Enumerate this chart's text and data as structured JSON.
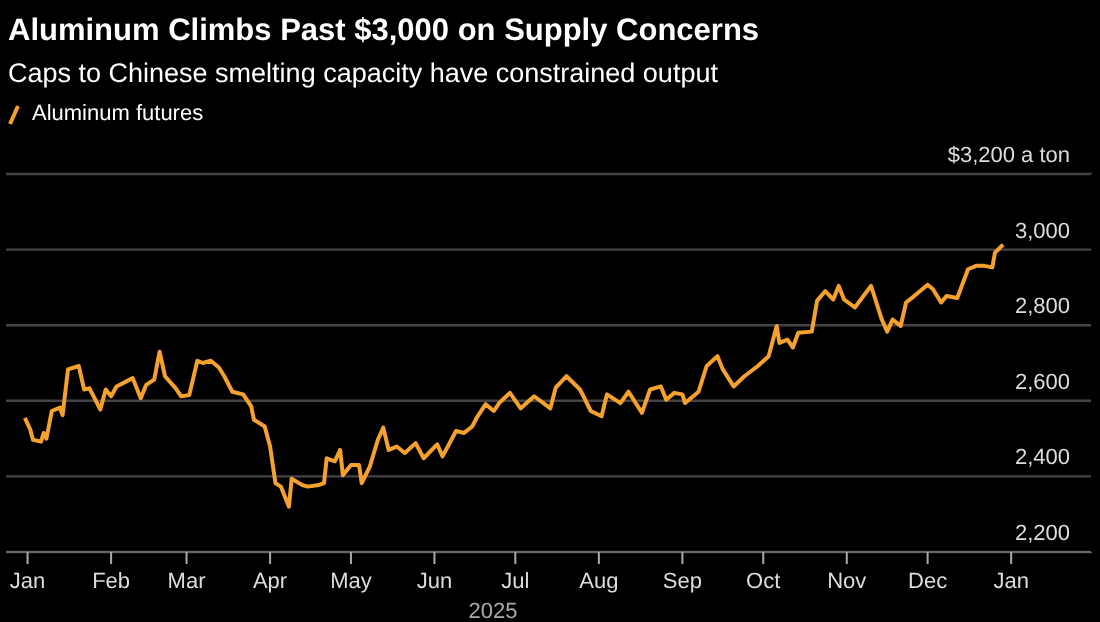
{
  "chart_data": {
    "type": "line",
    "title": "Aluminum Climbs Past $3,000 on Supply Concerns",
    "subtitle": "Caps to Chinese smelting capacity have constrained output",
    "xlabel": "2025",
    "legend": "top left",
    "grid": "y",
    "x": [
      "2024-12-31",
      "2025-01-02",
      "2025-01-03",
      "2025-01-06",
      "2025-01-07",
      "2025-01-08",
      "2025-01-10",
      "2025-01-13",
      "2025-01-14",
      "2025-01-16",
      "2025-01-20",
      "2025-01-22",
      "2025-01-24",
      "2025-01-28",
      "2025-01-30",
      "2025-02-01",
      "2025-02-03",
      "2025-02-09",
      "2025-02-12",
      "2025-02-14",
      "2025-02-17",
      "2025-02-19",
      "2025-02-21",
      "2025-02-25",
      "2025-02-27",
      "2025-03-02",
      "2025-03-05",
      "2025-03-07",
      "2025-03-10",
      "2025-03-13",
      "2025-03-15",
      "2025-03-18",
      "2025-03-22",
      "2025-03-25",
      "2025-03-26",
      "2025-03-30",
      "2025-04-01",
      "2025-04-03",
      "2025-04-05",
      "2025-04-08",
      "2025-04-09",
      "2025-04-13",
      "2025-04-15",
      "2025-04-19",
      "2025-04-21",
      "2025-04-22",
      "2025-04-25",
      "2025-04-27",
      "2025-04-28",
      "2025-05-01",
      "2025-05-04",
      "2025-05-05",
      "2025-05-08",
      "2025-05-11",
      "2025-05-13",
      "2025-05-15",
      "2025-05-18",
      "2025-05-21",
      "2025-05-25",
      "2025-05-28",
      "2025-06-02",
      "2025-06-04",
      "2025-06-09",
      "2025-06-12",
      "2025-06-15",
      "2025-06-17",
      "2025-06-20",
      "2025-06-23",
      "2025-06-25",
      "2025-06-29",
      "2025-07-03",
      "2025-07-08",
      "2025-07-14",
      "2025-07-16",
      "2025-07-20",
      "2025-07-25",
      "2025-07-29",
      "2025-08-02",
      "2025-08-04",
      "2025-08-09",
      "2025-08-12",
      "2025-08-17",
      "2025-08-20",
      "2025-08-24",
      "2025-08-26",
      "2025-08-29",
      "2025-09-01",
      "2025-09-02",
      "2025-09-07",
      "2025-09-10",
      "2025-09-14",
      "2025-09-16",
      "2025-09-20",
      "2025-09-24",
      "2025-09-29",
      "2025-10-03",
      "2025-10-06",
      "2025-10-07",
      "2025-10-10",
      "2025-10-12",
      "2025-10-14",
      "2025-10-19",
      "2025-10-21",
      "2025-10-24",
      "2025-10-27",
      "2025-10-29",
      "2025-10-31",
      "2025-11-04",
      "2025-11-10",
      "2025-11-14",
      "2025-11-16",
      "2025-11-18",
      "2025-11-21",
      "2025-11-23",
      "2025-11-26",
      "2025-12-01",
      "2025-12-03",
      "2025-12-06",
      "2025-12-08",
      "2025-12-12",
      "2025-12-16",
      "2025-12-19",
      "2025-12-22",
      "2025-12-25",
      "2025-12-26",
      "2025-12-29"
    ],
    "series": [
      {
        "name": "Aluminum futures",
        "color": "#f6a12c",
        "values": [
          2555,
          2524,
          2497,
          2492,
          2515,
          2500,
          2573,
          2582,
          2562,
          2683,
          2692,
          2630,
          2633,
          2577,
          2630,
          2612,
          2638,
          2660,
          2607,
          2642,
          2656,
          2730,
          2665,
          2633,
          2612,
          2615,
          2706,
          2700,
          2706,
          2688,
          2665,
          2624,
          2617,
          2585,
          2550,
          2532,
          2479,
          2382,
          2373,
          2320,
          2394,
          2377,
          2373,
          2377,
          2382,
          2448,
          2440,
          2470,
          2403,
          2430,
          2430,
          2382,
          2426,
          2497,
          2529,
          2470,
          2479,
          2462,
          2488,
          2448,
          2485,
          2453,
          2520,
          2515,
          2532,
          2559,
          2591,
          2573,
          2594,
          2621,
          2580,
          2612,
          2580,
          2635,
          2665,
          2630,
          2573,
          2559,
          2617,
          2594,
          2624,
          2568,
          2630,
          2638,
          2603,
          2621,
          2617,
          2594,
          2624,
          2692,
          2718,
          2683,
          2638,
          2665,
          2692,
          2718,
          2798,
          2753,
          2762,
          2741,
          2780,
          2783,
          2865,
          2890,
          2868,
          2904,
          2868,
          2847,
          2904,
          2815,
          2783,
          2815,
          2798,
          2860,
          2877,
          2907,
          2895,
          2860,
          2877,
          2872,
          2948,
          2957,
          2957,
          2953,
          2992,
          3013
        ]
      }
    ],
    "xlim": [
      "2024-12-24",
      "2026-01-31"
    ],
    "xticks": [
      {
        "value": "2025-01-01",
        "label": "Jan"
      },
      {
        "value": "2025-02-01",
        "label": "Feb"
      },
      {
        "value": "2025-03-01",
        "label": "Mar"
      },
      {
        "value": "2025-04-01",
        "label": "Apr"
      },
      {
        "value": "2025-05-01",
        "label": "May"
      },
      {
        "value": "2025-06-01",
        "label": "Jun"
      },
      {
        "value": "2025-07-01",
        "label": "Jul"
      },
      {
        "value": "2025-08-01",
        "label": "Aug"
      },
      {
        "value": "2025-09-01",
        "label": "Sep"
      },
      {
        "value": "2025-10-01",
        "label": "Oct"
      },
      {
        "value": "2025-11-01",
        "label": "Nov"
      },
      {
        "value": "2025-12-01",
        "label": "Dec"
      },
      {
        "value": "2026-01-01",
        "label": "Jan"
      }
    ],
    "ylim": [
      2200,
      3200
    ],
    "yticks": [
      {
        "value": 2200,
        "label": "2,200"
      },
      {
        "value": 2400,
        "label": "2,400"
      },
      {
        "value": 2600,
        "label": "2,600"
      },
      {
        "value": 2800,
        "label": "2,800"
      },
      {
        "value": 3000,
        "label": "3,000"
      },
      {
        "value": 3200,
        "label": "$3,200 a ton"
      }
    ]
  }
}
